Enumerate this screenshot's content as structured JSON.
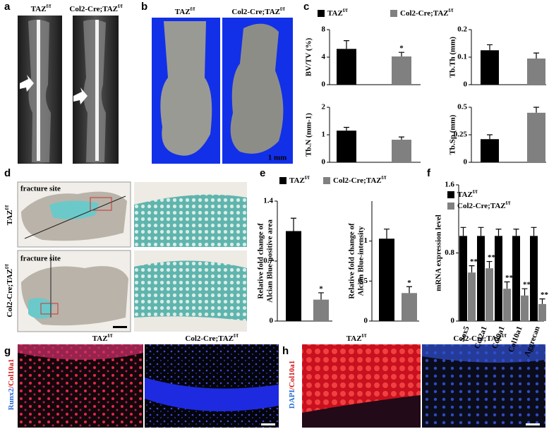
{
  "panel_letters": [
    "a",
    "b",
    "c",
    "d",
    "e",
    "f",
    "g",
    "h"
  ],
  "a": {
    "labels": [
      {
        "base": "TAZ",
        "sup": "f/f"
      },
      {
        "base": "Col2-Cre;TAZ",
        "sup": "f/f"
      }
    ]
  },
  "b": {
    "labels": [
      {
        "base": "TAZ",
        "sup": "f/f"
      },
      {
        "base": "Col2-Cre;TAZ",
        "sup": "f/f"
      }
    ],
    "scale": "1 mm"
  },
  "d": {
    "row_labels": [
      {
        "base": "TAZ",
        "sup": "f/f"
      },
      {
        "base": "Col2-Cre;TAZ",
        "sup": "f/f"
      }
    ],
    "annotations": [
      "fracture site",
      "fracture site"
    ]
  },
  "g": {
    "labels": [
      {
        "base": "TAZ",
        "sup": "f/f"
      },
      {
        "base": "Col2-Cre;TAZ",
        "sup": "f/f"
      }
    ],
    "stain": [
      "Runx2",
      "/Col10a1"
    ]
  },
  "h": {
    "labels": [
      {
        "base": "TAZ",
        "sup": "f/f"
      },
      {
        "base": "Col2-Cre;TAZ",
        "sup": "f/f"
      }
    ],
    "stain": [
      "DAPI",
      "/Col10a1"
    ]
  },
  "chart_data": [
    {
      "type": "bar",
      "ylabel": [
        "BV/TV (%)"
      ],
      "ylim": [
        0,
        8
      ],
      "yticks": [
        0,
        4,
        8
      ],
      "series": [
        {
          "name": "TAZ",
          "name_sup": "f/f",
          "color": "#000000",
          "values": [
            5.2
          ],
          "errors": [
            1.2
          ]
        },
        {
          "name": "Col2-Cre;TAZ",
          "name_sup": "f/f",
          "color": "#808080",
          "values": [
            4.1
          ],
          "errors": [
            0.6
          ],
          "significance": [
            "*"
          ]
        }
      ]
    },
    {
      "type": "bar",
      "ylabel": [
        "Tb.Th (mm)"
      ],
      "ylim": [
        0,
        0.2
      ],
      "yticks": [
        0,
        0.1,
        0.2
      ],
      "series": [
        {
          "color": "#000000",
          "values": [
            0.125
          ],
          "errors": [
            0.02
          ]
        },
        {
          "color": "#808080",
          "values": [
            0.095
          ],
          "errors": [
            0.02
          ]
        }
      ]
    },
    {
      "type": "bar",
      "ylabel": [
        "Tb.N (mm-1)"
      ],
      "ylim": [
        0,
        2
      ],
      "yticks": [
        0,
        1,
        2
      ],
      "series": [
        {
          "color": "#000000",
          "values": [
            1.15
          ],
          "errors": [
            0.12
          ]
        },
        {
          "color": "#808080",
          "values": [
            0.82
          ],
          "errors": [
            0.1
          ]
        }
      ]
    },
    {
      "type": "bar",
      "ylabel": [
        "Tb.Sp (mm)"
      ],
      "ylim": [
        0,
        0.5
      ],
      "yticks": [
        0,
        0.25,
        0.5
      ],
      "series": [
        {
          "color": "#000000",
          "values": [
            0.21
          ],
          "errors": [
            0.04
          ]
        },
        {
          "color": "#808080",
          "values": [
            0.45
          ],
          "errors": [
            0.05
          ]
        }
      ]
    },
    {
      "type": "bar",
      "ylabel": [
        "Relative fold change of",
        "Alcian Blue-positive area"
      ],
      "ylim": [
        0,
        1.4
      ],
      "yticks": [
        0,
        0.7,
        1.4
      ],
      "series": [
        {
          "name": "TAZ",
          "name_sup": "f/f",
          "color": "#000000",
          "values": [
            1.05
          ],
          "errors": [
            0.15
          ]
        },
        {
          "name": "Col2-Cre;TAZ",
          "name_sup": "f/f",
          "color": "#808080",
          "values": [
            0.25
          ],
          "errors": [
            0.08
          ],
          "significance": [
            "*"
          ]
        }
      ]
    },
    {
      "type": "bar",
      "ylabel": [
        "Relative fold change of",
        "Alcian Blue-intensity"
      ],
      "ylim": [
        0,
        1.5
      ],
      "yticks": [
        0,
        0.5,
        1
      ],
      "series": [
        {
          "color": "#000000",
          "values": [
            1.03
          ],
          "errors": [
            0.12
          ]
        },
        {
          "color": "#808080",
          "values": [
            0.35
          ],
          "errors": [
            0.08
          ],
          "significance": [
            "*"
          ]
        }
      ]
    },
    {
      "type": "grouped-bar",
      "ylabel": [
        "mRNA expression level"
      ],
      "ylim": [
        0,
        1.6
      ],
      "yticks": [
        0,
        0.8,
        1.6
      ],
      "categories": [
        "Sox5",
        "Col2a1",
        "Col9a1",
        "Col10a1",
        "Aggrecan"
      ],
      "series": [
        {
          "name": "TAZ",
          "name_sup": "f/f",
          "color": "#000000",
          "values": [
            1,
            1,
            1,
            1,
            1
          ],
          "errors": [
            0.1,
            0.1,
            0.08,
            0.08,
            0.1
          ]
        },
        {
          "name": "Col2-Cre;TAZ",
          "name_sup": "f/f",
          "color": "#808080",
          "values": [
            0.57,
            0.62,
            0.38,
            0.3,
            0.2
          ],
          "errors": [
            0.08,
            0.08,
            0.08,
            0.08,
            0.06
          ],
          "significance": [
            "**",
            "**",
            "**",
            "**",
            "**"
          ]
        }
      ]
    }
  ]
}
